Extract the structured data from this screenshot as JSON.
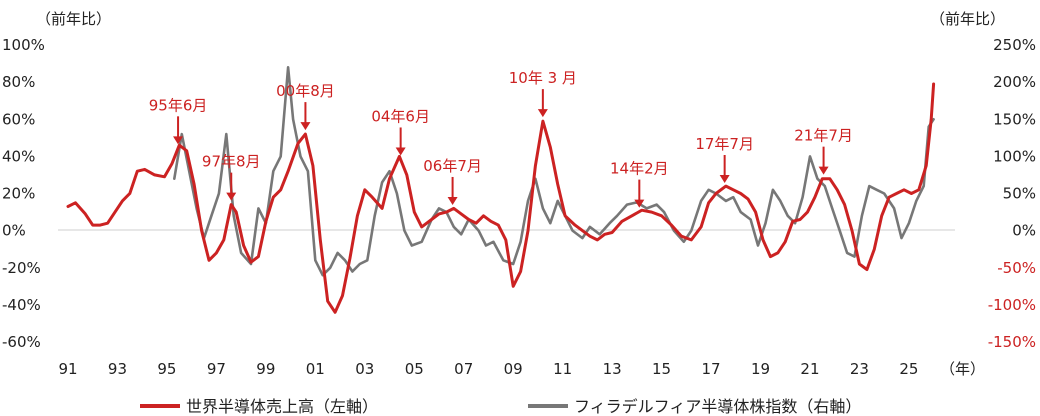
{
  "chart_data": {
    "type": "line",
    "left_axis": {
      "unit_label": "（前年比）",
      "ylim": [
        -60,
        100
      ],
      "ticks": [
        {
          "value": 100,
          "label": "100%"
        },
        {
          "value": 80,
          "label": "80%"
        },
        {
          "value": 60,
          "label": "60%"
        },
        {
          "value": 40,
          "label": "40%"
        },
        {
          "value": 20,
          "label": "20%"
        },
        {
          "value": 0,
          "label": "0%"
        },
        {
          "value": -20,
          "label": "-20%"
        },
        {
          "value": -40,
          "label": "-40%"
        },
        {
          "value": -60,
          "label": "-60%"
        }
      ]
    },
    "right_axis": {
      "unit_label": "（前年比）",
      "ylim": [
        -150,
        250
      ],
      "ticks": [
        {
          "value": 250,
          "label": "250%"
        },
        {
          "value": 200,
          "label": "200%"
        },
        {
          "value": 150,
          "label": "150%"
        },
        {
          "value": 100,
          "label": "100%"
        },
        {
          "value": 50,
          "label": "50%"
        },
        {
          "value": 0,
          "label": "0%"
        },
        {
          "value": -50,
          "label": "-50%"
        },
        {
          "value": -100,
          "label": "-100%"
        },
        {
          "value": -150,
          "label": "-150%"
        }
      ]
    },
    "x_axis": {
      "unit_label": "（年）",
      "xlim": [
        1991,
        2026.5
      ],
      "ticks": [
        {
          "value": 1991,
          "label": "91"
        },
        {
          "value": 1993,
          "label": "93"
        },
        {
          "value": 1995,
          "label": "95"
        },
        {
          "value": 1997,
          "label": "97"
        },
        {
          "value": 1999,
          "label": "99"
        },
        {
          "value": 2001,
          "label": "01"
        },
        {
          "value": 2003,
          "label": "03"
        },
        {
          "value": 2005,
          "label": "05"
        },
        {
          "value": 2007,
          "label": "07"
        },
        {
          "value": 2009,
          "label": "09"
        },
        {
          "value": 2011,
          "label": "11"
        },
        {
          "value": 2013,
          "label": "13"
        },
        {
          "value": 2015,
          "label": "15"
        },
        {
          "value": 2017,
          "label": "17"
        },
        {
          "value": 2019,
          "label": "19"
        },
        {
          "value": 2021,
          "label": "21"
        },
        {
          "value": 2023,
          "label": "23"
        },
        {
          "value": 2025,
          "label": "25"
        }
      ]
    },
    "series": [
      {
        "name": "世界半導体売上高（左軸）",
        "axis": "left",
        "color": "#cc2222",
        "points": [
          [
            1991.0,
            13
          ],
          [
            1991.3,
            15
          ],
          [
            1991.7,
            9
          ],
          [
            1992.0,
            3
          ],
          [
            1992.3,
            3
          ],
          [
            1992.6,
            4
          ],
          [
            1992.9,
            10
          ],
          [
            1993.2,
            16
          ],
          [
            1993.5,
            20
          ],
          [
            1993.8,
            32
          ],
          [
            1994.1,
            33
          ],
          [
            1994.5,
            30
          ],
          [
            1994.9,
            29
          ],
          [
            1995.2,
            36
          ],
          [
            1995.5,
            46
          ],
          [
            1995.8,
            43
          ],
          [
            1996.1,
            25
          ],
          [
            1996.4,
            0
          ],
          [
            1996.7,
            -16
          ],
          [
            1997.0,
            -12
          ],
          [
            1997.3,
            -5
          ],
          [
            1997.6,
            14
          ],
          [
            1997.8,
            10
          ],
          [
            1998.1,
            -8
          ],
          [
            1998.4,
            -17
          ],
          [
            1998.7,
            -14
          ],
          [
            1999.0,
            5
          ],
          [
            1999.3,
            18
          ],
          [
            1999.6,
            22
          ],
          [
            1999.9,
            32
          ],
          [
            2000.3,
            47
          ],
          [
            2000.6,
            52
          ],
          [
            2000.9,
            35
          ],
          [
            2001.2,
            -5
          ],
          [
            2001.5,
            -38
          ],
          [
            2001.8,
            -44
          ],
          [
            2002.1,
            -35
          ],
          [
            2002.4,
            -15
          ],
          [
            2002.7,
            8
          ],
          [
            2003.0,
            22
          ],
          [
            2003.3,
            18
          ],
          [
            2003.7,
            12
          ],
          [
            2004.0,
            28
          ],
          [
            2004.4,
            40
          ],
          [
            2004.7,
            30
          ],
          [
            2005.0,
            10
          ],
          [
            2005.3,
            2
          ],
          [
            2005.7,
            6
          ],
          [
            2006.0,
            9
          ],
          [
            2006.3,
            10
          ],
          [
            2006.6,
            12
          ],
          [
            2006.9,
            9
          ],
          [
            2007.2,
            6
          ],
          [
            2007.5,
            4
          ],
          [
            2007.8,
            8
          ],
          [
            2008.1,
            5
          ],
          [
            2008.4,
            3
          ],
          [
            2008.7,
            -5
          ],
          [
            2009.0,
            -30
          ],
          [
            2009.3,
            -22
          ],
          [
            2009.6,
            0
          ],
          [
            2009.9,
            35
          ],
          [
            2010.2,
            59
          ],
          [
            2010.5,
            45
          ],
          [
            2010.8,
            25
          ],
          [
            2011.1,
            8
          ],
          [
            2011.5,
            3
          ],
          [
            2011.8,
            0
          ],
          [
            2012.1,
            -3
          ],
          [
            2012.4,
            -5
          ],
          [
            2012.7,
            -2
          ],
          [
            2013.0,
            -1
          ],
          [
            2013.4,
            5
          ],
          [
            2013.8,
            8
          ],
          [
            2014.2,
            11
          ],
          [
            2014.6,
            10
          ],
          [
            2015.0,
            8
          ],
          [
            2015.4,
            3
          ],
          [
            2015.8,
            -3
          ],
          [
            2016.2,
            -5
          ],
          [
            2016.6,
            2
          ],
          [
            2016.9,
            15
          ],
          [
            2017.2,
            20
          ],
          [
            2017.6,
            24
          ],
          [
            2017.9,
            22
          ],
          [
            2018.2,
            20
          ],
          [
            2018.5,
            17
          ],
          [
            2018.8,
            10
          ],
          [
            2019.1,
            -5
          ],
          [
            2019.4,
            -14
          ],
          [
            2019.7,
            -12
          ],
          [
            2020.0,
            -6
          ],
          [
            2020.3,
            5
          ],
          [
            2020.6,
            6
          ],
          [
            2020.9,
            10
          ],
          [
            2021.2,
            18
          ],
          [
            2021.5,
            28
          ],
          [
            2021.8,
            28
          ],
          [
            2022.1,
            22
          ],
          [
            2022.4,
            14
          ],
          [
            2022.7,
            0
          ],
          [
            2023.0,
            -18
          ],
          [
            2023.3,
            -21
          ],
          [
            2023.6,
            -10
          ],
          [
            2023.9,
            8
          ],
          [
            2024.2,
            18
          ],
          [
            2024.5,
            20
          ],
          [
            2024.8,
            22
          ],
          [
            2025.1,
            20
          ],
          [
            2025.4,
            22
          ],
          [
            2025.7,
            35
          ],
          [
            2025.9,
            60
          ],
          [
            2026.0,
            79
          ]
        ]
      },
      {
        "name": "フィラデルフィア半導体株指数（右軸）",
        "axis": "right",
        "color": "#777777",
        "points": [
          [
            1995.3,
            70
          ],
          [
            1995.6,
            130
          ],
          [
            1995.9,
            80
          ],
          [
            1996.2,
            30
          ],
          [
            1996.5,
            -10
          ],
          [
            1996.8,
            20
          ],
          [
            1997.1,
            50
          ],
          [
            1997.4,
            130
          ],
          [
            1997.7,
            20
          ],
          [
            1998.0,
            -30
          ],
          [
            1998.4,
            -45
          ],
          [
            1998.7,
            30
          ],
          [
            1999.0,
            10
          ],
          [
            1999.3,
            80
          ],
          [
            1999.6,
            100
          ],
          [
            1999.9,
            220
          ],
          [
            2000.1,
            150
          ],
          [
            2000.4,
            100
          ],
          [
            2000.7,
            80
          ],
          [
            2001.0,
            -40
          ],
          [
            2001.3,
            -60
          ],
          [
            2001.6,
            -50
          ],
          [
            2001.9,
            -30
          ],
          [
            2002.2,
            -40
          ],
          [
            2002.5,
            -55
          ],
          [
            2002.8,
            -45
          ],
          [
            2003.1,
            -40
          ],
          [
            2003.4,
            20
          ],
          [
            2003.7,
            65
          ],
          [
            2004.0,
            80
          ],
          [
            2004.3,
            50
          ],
          [
            2004.6,
            0
          ],
          [
            2004.9,
            -20
          ],
          [
            2005.3,
            -15
          ],
          [
            2005.7,
            15
          ],
          [
            2006.0,
            30
          ],
          [
            2006.3,
            25
          ],
          [
            2006.6,
            5
          ],
          [
            2006.9,
            -5
          ],
          [
            2007.2,
            15
          ],
          [
            2007.6,
            0
          ],
          [
            2007.9,
            -20
          ],
          [
            2008.2,
            -15
          ],
          [
            2008.6,
            -40
          ],
          [
            2009.0,
            -45
          ],
          [
            2009.3,
            -15
          ],
          [
            2009.6,
            40
          ],
          [
            2009.9,
            70
          ],
          [
            2010.2,
            30
          ],
          [
            2010.5,
            10
          ],
          [
            2010.8,
            40
          ],
          [
            2011.1,
            20
          ],
          [
            2011.4,
            0
          ],
          [
            2011.8,
            -10
          ],
          [
            2012.1,
            5
          ],
          [
            2012.5,
            -5
          ],
          [
            2012.9,
            10
          ],
          [
            2013.2,
            20
          ],
          [
            2013.6,
            35
          ],
          [
            2014.0,
            38
          ],
          [
            2014.4,
            30
          ],
          [
            2014.8,
            35
          ],
          [
            2015.1,
            25
          ],
          [
            2015.5,
            0
          ],
          [
            2015.9,
            -15
          ],
          [
            2016.2,
            0
          ],
          [
            2016.6,
            40
          ],
          [
            2016.9,
            55
          ],
          [
            2017.2,
            50
          ],
          [
            2017.6,
            40
          ],
          [
            2017.9,
            45
          ],
          [
            2018.2,
            25
          ],
          [
            2018.6,
            15
          ],
          [
            2018.9,
            -20
          ],
          [
            2019.2,
            10
          ],
          [
            2019.5,
            55
          ],
          [
            2019.8,
            40
          ],
          [
            2020.1,
            20
          ],
          [
            2020.4,
            10
          ],
          [
            2020.7,
            45
          ],
          [
            2021.0,
            100
          ],
          [
            2021.3,
            70
          ],
          [
            2021.6,
            60
          ],
          [
            2021.9,
            30
          ],
          [
            2022.2,
            0
          ],
          [
            2022.5,
            -30
          ],
          [
            2022.8,
            -35
          ],
          [
            2023.1,
            20
          ],
          [
            2023.4,
            60
          ],
          [
            2023.7,
            55
          ],
          [
            2024.0,
            50
          ],
          [
            2024.4,
            30
          ],
          [
            2024.7,
            -10
          ],
          [
            2025.0,
            10
          ],
          [
            2025.3,
            40
          ],
          [
            2025.6,
            60
          ],
          [
            2025.8,
            140
          ],
          [
            2026.0,
            150
          ]
        ]
      }
    ],
    "annotations": [
      {
        "label": "95年6月",
        "x": 1995.45
      },
      {
        "label": "97年8月",
        "x": 1997.6
      },
      {
        "label": "00年8月",
        "x": 2000.6
      },
      {
        "label": "04年6月",
        "x": 2004.45
      },
      {
        "label": "06年7月",
        "x": 2006.55
      },
      {
        "label": "10年 3 月",
        "x": 2010.2
      },
      {
        "label": "14年2月",
        "x": 2014.1
      },
      {
        "label": "17年7月",
        "x": 2017.55
      },
      {
        "label": "21年7月",
        "x": 2021.55
      }
    ],
    "legend_position": "bottom"
  }
}
